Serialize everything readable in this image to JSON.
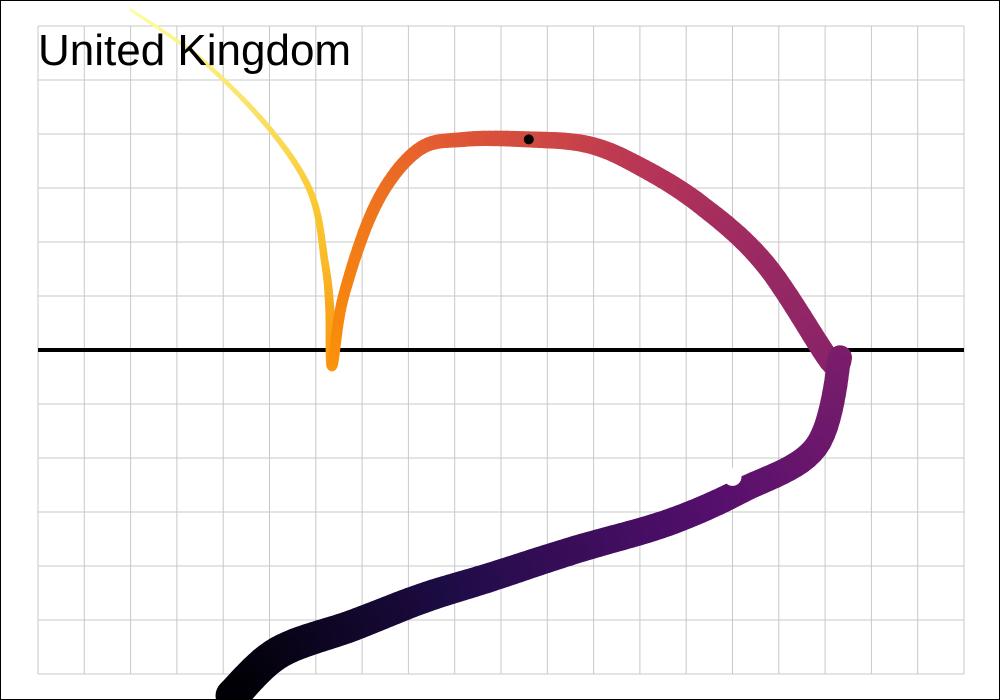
{
  "chart_data": {
    "type": "line",
    "title": "United Kingdom",
    "xlabel": "",
    "ylabel": "",
    "grid": true,
    "legend": "none",
    "color_scale": "inferno",
    "xlim": [
      0,
      20
    ],
    "ylim": [
      -6,
      6
    ],
    "reference_line_y": 0,
    "series": [
      {
        "x": [
          2.0,
          3.5,
          5.0,
          5.9,
          6.2,
          6.3,
          6.35,
          6.6,
          7.3,
          8.2,
          9.2,
          10.6,
          11.9,
          13.0,
          14.3,
          15.7,
          17.1,
          17.3,
          16.8,
          15.2,
          13.6,
          11.6,
          9.8,
          8.3,
          6.8,
          5.2,
          4.2
        ],
        "y": [
          6.3,
          5.4,
          4.1,
          2.9,
          1.6,
          0.8,
          -0.3,
          1.0,
          2.7,
          3.7,
          3.9,
          3.9,
          3.8,
          3.4,
          2.7,
          1.6,
          -0.2,
          -0.2,
          -1.8,
          -2.6,
          -3.2,
          -3.7,
          -4.2,
          -4.6,
          -5.1,
          -5.6,
          -6.4
        ]
      }
    ],
    "markers": [
      {
        "x": 10.6,
        "y": 3.9,
        "color": "#000000"
      },
      {
        "x": 15.0,
        "y": -2.35,
        "color": "#ffffff"
      }
    ]
  }
}
